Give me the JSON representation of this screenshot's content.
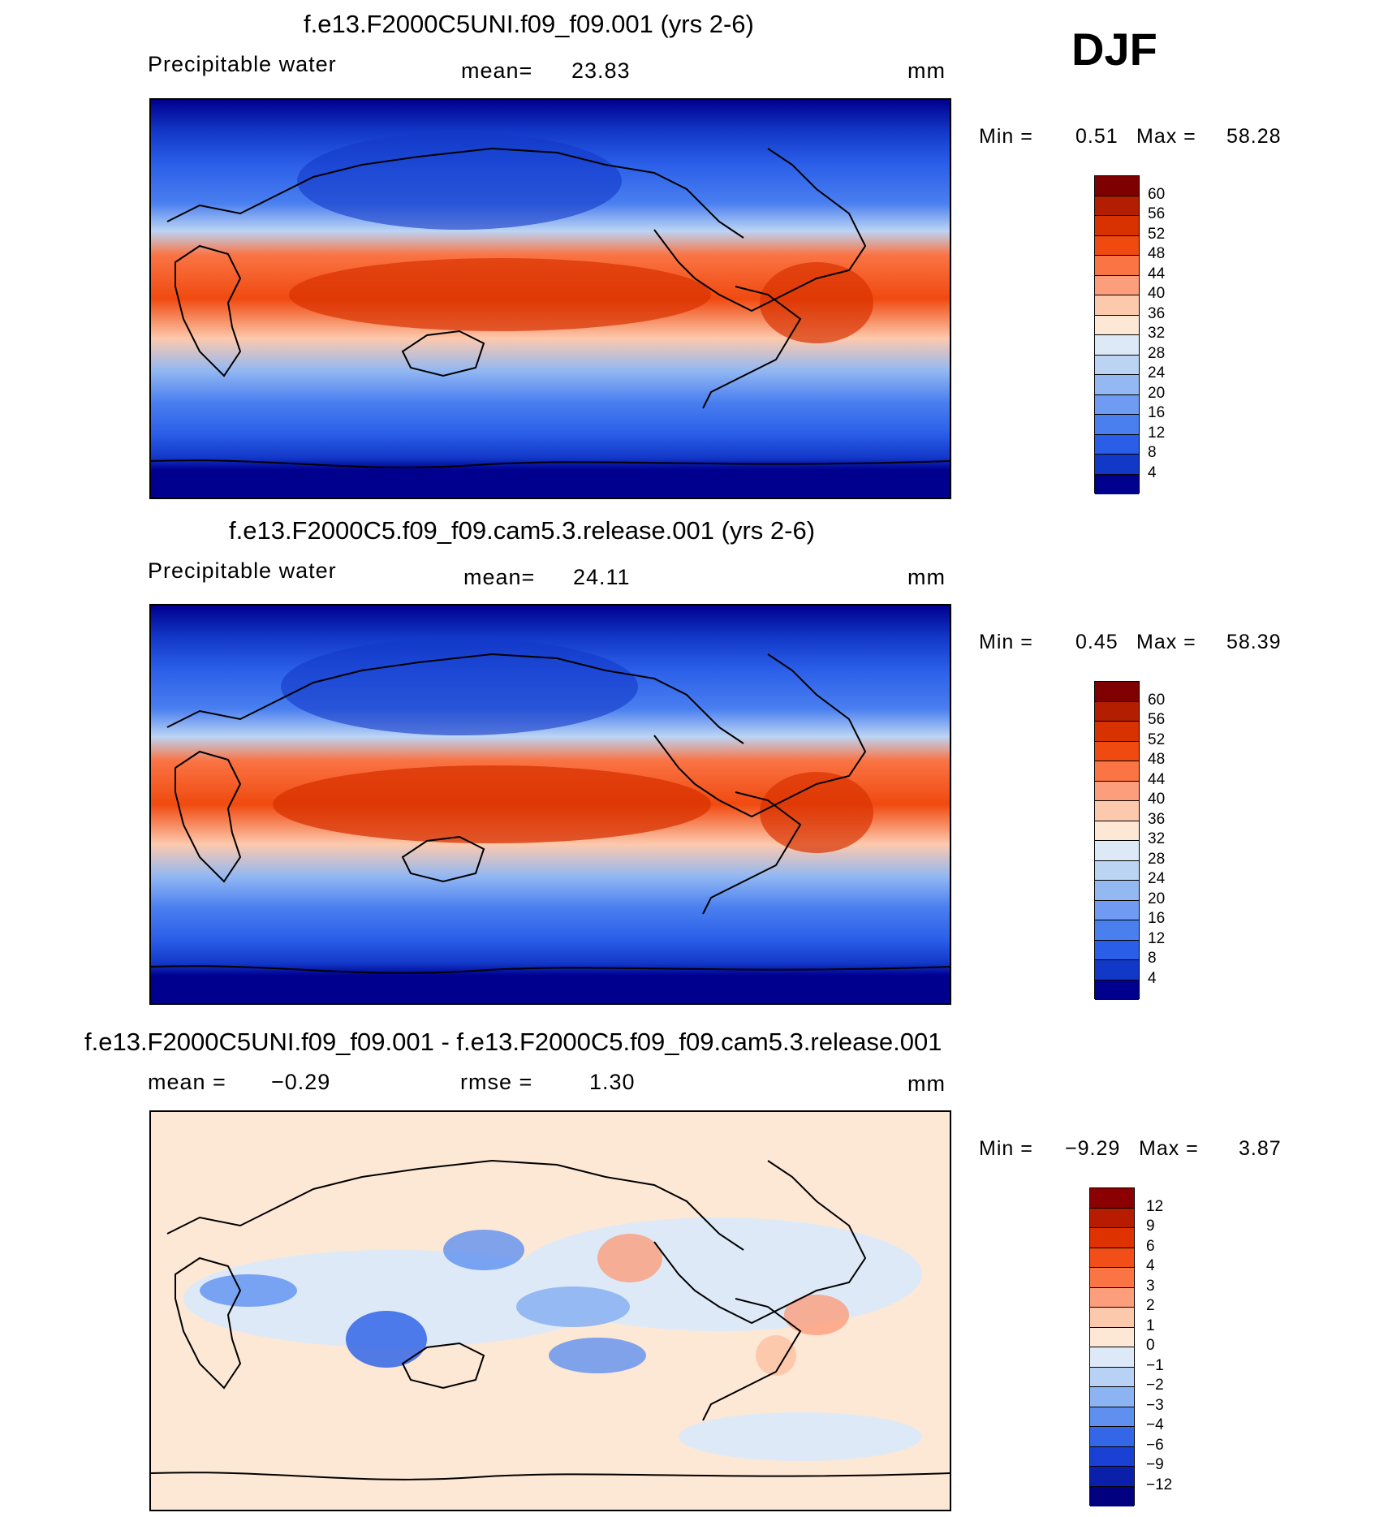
{
  "season": "DJF",
  "chart_data": [
    {
      "type": "heatmap",
      "title": "f.e13.F2000C5UNI.f09_f09.001 (yrs 2-6)",
      "variable": "Precipitable water",
      "stats_label": "mean=",
      "stats_value": "23.83",
      "units": "mm",
      "min_label": "Min =",
      "min": "0.51",
      "max_label": "Max =",
      "max": "58.28",
      "colorbar_levels": [
        "60",
        "56",
        "52",
        "48",
        "44",
        "40",
        "36",
        "32",
        "28",
        "24",
        "20",
        "16",
        "12",
        "8",
        "4"
      ],
      "colorbar_colors": [
        "#7f0000",
        "#b31d00",
        "#d83200",
        "#f04a10",
        "#fa7444",
        "#fc9e7c",
        "#fdc9ad",
        "#fde8d6",
        "#dde9f7",
        "#bcd4f4",
        "#93b8f2",
        "#6f9cf2",
        "#4a7ff0",
        "#2a5ee8",
        "#1238c8",
        "#00008f"
      ],
      "scheme": "sequential"
    },
    {
      "type": "heatmap",
      "title": "f.e13.F2000C5.f09_f09.cam5.3.release.001 (yrs 2-6)",
      "variable": "Precipitable water",
      "stats_label": "mean=",
      "stats_value": "24.11",
      "units": "mm",
      "min_label": "Min =",
      "min": "0.45",
      "max_label": "Max =",
      "max": "58.39",
      "colorbar_levels": [
        "60",
        "56",
        "52",
        "48",
        "44",
        "40",
        "36",
        "32",
        "28",
        "24",
        "20",
        "16",
        "12",
        "8",
        "4"
      ],
      "colorbar_colors": [
        "#7f0000",
        "#b31d00",
        "#d83200",
        "#f04a10",
        "#fa7444",
        "#fc9e7c",
        "#fdc9ad",
        "#fde8d6",
        "#dde9f7",
        "#bcd4f4",
        "#93b8f2",
        "#6f9cf2",
        "#4a7ff0",
        "#2a5ee8",
        "#1238c8",
        "#00008f"
      ],
      "scheme": "sequential"
    },
    {
      "type": "heatmap",
      "title": "f.e13.F2000C5UNI.f09_f09.001 - f.e13.F2000C5.f09_f09.cam5.3.release.001",
      "variable": "mean =",
      "variable_value": "−0.29",
      "stats_label": "rmse =",
      "stats_value": "1.30",
      "units": "mm",
      "min_label": "Min =",
      "min": "−9.29",
      "max_label": "Max =",
      "max": "3.87",
      "colorbar_levels": [
        "12",
        "9",
        "6",
        "4",
        "3",
        "2",
        "1",
        "0",
        "−1",
        "−2",
        "−3",
        "−4",
        "−6",
        "−9",
        "−12"
      ],
      "colorbar_colors": [
        "#8b0000",
        "#b81c00",
        "#de3200",
        "#f24e18",
        "#fa7444",
        "#fc9e7c",
        "#fdc9ad",
        "#fde8d6",
        "#dde9f7",
        "#b8d2f5",
        "#8cb4f2",
        "#5f90f0",
        "#3466e8",
        "#1a40d4",
        "#0a20aa",
        "#000080"
      ],
      "scheme": "diverging"
    }
  ]
}
